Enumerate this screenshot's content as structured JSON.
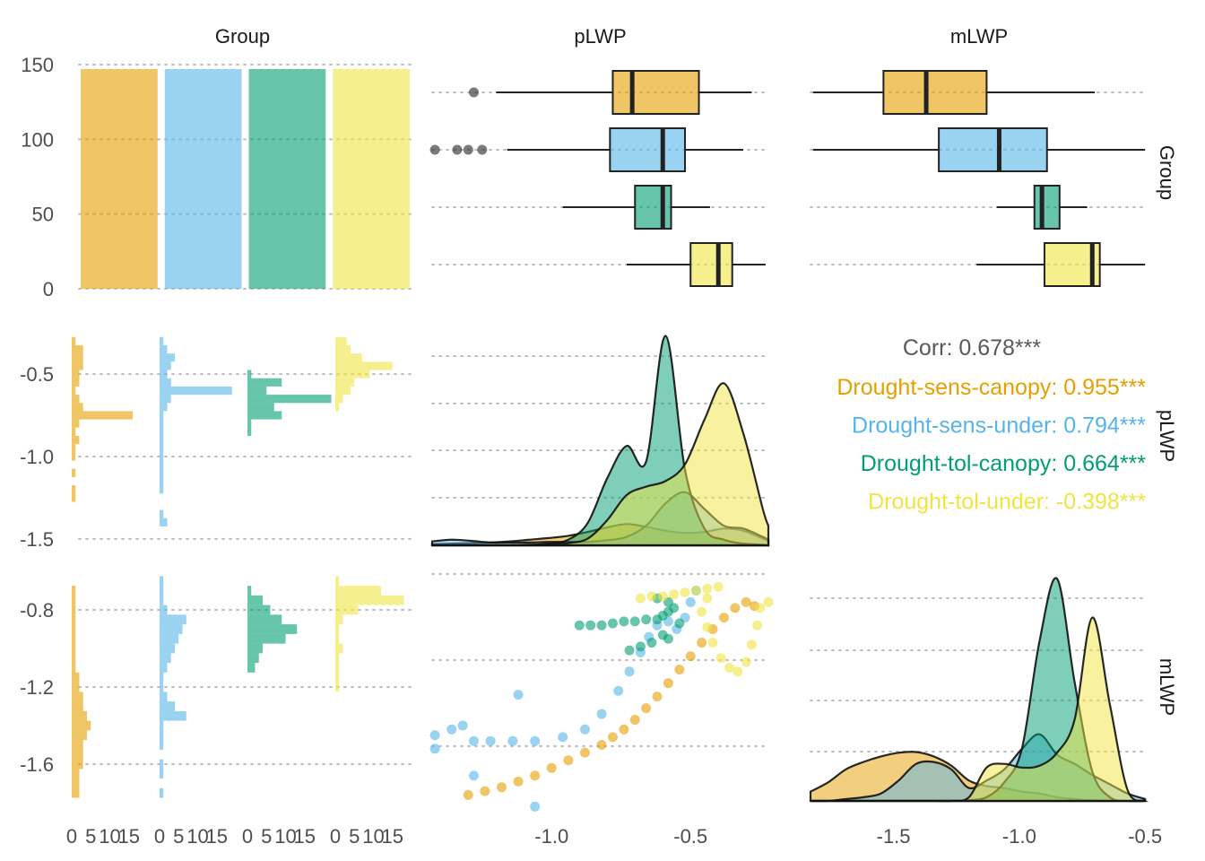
{
  "colors": {
    "group1": "#e69f00",
    "group2": "#56b4e9",
    "group3": "#009e73",
    "group4": "#f0e442",
    "corr_overall": "#595959"
  },
  "chart_data": {
    "type": "scatter",
    "subtype": "pairs matrix (ggpairs)",
    "variables": [
      "Group",
      "pLWP",
      "mLWP"
    ],
    "groups": [
      "Drought-sens-canopy",
      "Drought-sens-under",
      "Drought-tol-canopy",
      "Drought-tol-under"
    ],
    "group_counts": [
      147,
      147,
      147,
      147
    ],
    "group_axis": {
      "ticks": [
        0,
        50,
        100,
        150
      ],
      "ylim": [
        0,
        150
      ]
    },
    "plwp_axis": {
      "ticks": [
        -1.0,
        -0.5
      ],
      "xlim": [
        -1.43,
        -0.22
      ],
      "row_ticks": [
        -0.5,
        -1.0,
        -1.5
      ],
      "ylim": [
        -1.55,
        -0.2
      ]
    },
    "mlwp_axis": {
      "ticks": [
        -1.5,
        -1.0,
        -0.5
      ],
      "xlim": [
        -1.83,
        -0.49
      ],
      "row_ticks": [
        -0.8,
        -1.2,
        -1.6
      ],
      "ylim": [
        -1.8,
        -0.6
      ]
    },
    "histogram_count_ticks": [
      "0",
      "5",
      "10",
      "15"
    ],
    "boxplots": {
      "pLWP": [
        {
          "group": "Drought-sens-canopy",
          "whisker_low": -1.2,
          "q1": -0.78,
          "median": -0.71,
          "q3": -0.47,
          "whisker_high": -0.28,
          "outliers": [
            -1.28
          ]
        },
        {
          "group": "Drought-sens-under",
          "whisker_low": -1.16,
          "q1": -0.79,
          "median": -0.6,
          "q3": -0.52,
          "whisker_high": -0.31,
          "outliers": [
            -1.42,
            -1.34,
            -1.3,
            -1.25
          ]
        },
        {
          "group": "Drought-tol-canopy",
          "whisker_low": -0.96,
          "q1": -0.7,
          "median": -0.6,
          "q3": -0.57,
          "whisker_high": -0.43
        },
        {
          "group": "Drought-tol-under",
          "whisker_low": -0.73,
          "q1": -0.5,
          "median": -0.4,
          "q3": -0.35,
          "whisker_high": -0.23
        }
      ],
      "mLWP": [
        {
          "group": "Drought-sens-canopy",
          "whisker_low": -1.82,
          "q1": -1.54,
          "median": -1.37,
          "q3": -1.13,
          "whisker_high": -0.7
        },
        {
          "group": "Drought-sens-under",
          "whisker_low": -1.82,
          "q1": -1.32,
          "median": -1.08,
          "q3": -0.89,
          "whisker_high": -0.5
        },
        {
          "group": "Drought-tol-canopy",
          "whisker_low": -1.09,
          "q1": -0.94,
          "median": -0.91,
          "q3": -0.84,
          "whisker_high": -0.73
        },
        {
          "group": "Drought-tol-under",
          "whisker_low": -1.17,
          "q1": -0.9,
          "median": -0.71,
          "q3": -0.68,
          "whisker_high": -0.5
        }
      ]
    },
    "density_pLWP": {
      "x": [
        -1.43,
        -1.36,
        -1.29,
        -1.22,
        -1.15,
        -1.08,
        -1.01,
        -0.94,
        -0.87,
        -0.8,
        -0.73,
        -0.66,
        -0.59,
        -0.52,
        -0.45,
        -0.38,
        -0.31,
        -0.24,
        -0.22
      ],
      "series": [
        {
          "name": "Drought-sens-canopy",
          "values": [
            0.02,
            0.03,
            0.04,
            0.05,
            0.07,
            0.1,
            0.13,
            0.17,
            0.24,
            0.32,
            0.38,
            0.33,
            0.26,
            0.22,
            0.24,
            0.3,
            0.26,
            0.12,
            0.08
          ]
        },
        {
          "name": "Drought-sens-under",
          "values": [
            0.07,
            0.1,
            0.08,
            0.05,
            0.05,
            0.05,
            0.06,
            0.06,
            0.06,
            0.09,
            0.15,
            0.35,
            0.75,
            0.95,
            0.65,
            0.35,
            0.3,
            0.15,
            0.1
          ]
        },
        {
          "name": "Drought-tol-canopy",
          "values": [
            0.0,
            0.0,
            0.0,
            0.0,
            0.0,
            0.01,
            0.03,
            0.1,
            0.4,
            1.2,
            1.78,
            1.5,
            3.75,
            1.35,
            0.3,
            0.1,
            0.03,
            0.01,
            0.0
          ]
        },
        {
          "name": "Drought-tol-under",
          "values": [
            0.0,
            0.0,
            0.0,
            0.0,
            0.0,
            0.0,
            0.01,
            0.04,
            0.12,
            0.45,
            0.9,
            1.05,
            1.15,
            1.45,
            2.25,
            2.9,
            2.0,
            0.65,
            0.35
          ]
        }
      ],
      "ylim": [
        0,
        3.95
      ]
    },
    "density_mLWP": {
      "x": [
        -1.83,
        -1.76,
        -1.69,
        -1.62,
        -1.55,
        -1.48,
        -1.41,
        -1.34,
        -1.27,
        -1.2,
        -1.13,
        -1.06,
        -0.99,
        -0.92,
        -0.85,
        -0.78,
        -0.71,
        -0.64,
        -0.57,
        -0.5
      ],
      "series": [
        {
          "name": "Drought-sens-canopy",
          "values": [
            0.25,
            0.5,
            0.85,
            1.05,
            1.2,
            1.3,
            1.32,
            1.2,
            0.95,
            0.55,
            0.4,
            0.35,
            0.25,
            0.2,
            0.1,
            0.05,
            0.02,
            0.0,
            0.0,
            0.0
          ]
        },
        {
          "name": "Drought-sens-under",
          "values": [
            0.0,
            0.0,
            0.05,
            0.1,
            0.2,
            0.55,
            1.0,
            1.05,
            0.85,
            0.35,
            0.55,
            0.85,
            1.4,
            1.8,
            1.25,
            1.0,
            0.7,
            0.45,
            0.2,
            0.05
          ]
        },
        {
          "name": "Drought-tol-canopy",
          "values": [
            0.0,
            0.0,
            0.0,
            0.0,
            0.0,
            0.0,
            0.0,
            0.0,
            0.0,
            0.02,
            0.1,
            0.5,
            1.4,
            4.3,
            6.0,
            3.2,
            0.8,
            0.1,
            0.0,
            0.0
          ]
        },
        {
          "name": "Drought-tol-under",
          "values": [
            0.0,
            0.0,
            0.0,
            0.0,
            0.0,
            0.0,
            0.0,
            0.0,
            0.0,
            0.1,
            0.9,
            1.0,
            0.9,
            0.95,
            1.3,
            2.2,
            4.95,
            2.6,
            0.3,
            0.0
          ]
        }
      ],
      "ylim": [
        0,
        6.2
      ]
    },
    "histogram_pLWP": {
      "bins": [
        -0.3,
        -0.35,
        -0.4,
        -0.45,
        -0.5,
        -0.55,
        -0.6,
        -0.65,
        -0.7,
        -0.75,
        -0.8,
        -0.85,
        -0.9,
        -0.95,
        -1.0,
        -1.05,
        -1.1,
        -1.15,
        -1.2,
        -1.25,
        -1.3,
        -1.35,
        -1.4
      ],
      "series": [
        {
          "name": "Drought-sens-canopy",
          "counts": [
            1,
            3,
            3,
            3,
            2,
            2,
            1,
            2,
            3,
            16,
            2,
            1,
            2,
            1,
            1,
            0,
            1,
            0,
            1,
            1,
            0,
            0,
            0
          ]
        },
        {
          "name": "Drought-sens-under",
          "counts": [
            1,
            2,
            4,
            3,
            2,
            3,
            19,
            3,
            2,
            1,
            1,
            1,
            1,
            1,
            1,
            1,
            1,
            1,
            1,
            0,
            0,
            1,
            2
          ]
        },
        {
          "name": "Drought-tol-canopy",
          "counts": [
            0,
            0,
            0,
            0,
            1,
            9,
            5,
            22,
            7,
            9,
            1,
            1,
            0,
            0,
            0,
            0,
            0,
            0,
            0,
            0,
            0,
            0,
            0
          ]
        },
        {
          "name": "Drought-tol-under",
          "counts": [
            3,
            4,
            7,
            15,
            9,
            5,
            4,
            2,
            1,
            0,
            0,
            0,
            0,
            0,
            0,
            0,
            0,
            0,
            0,
            0,
            0,
            0,
            0
          ]
        }
      ],
      "xlim": [
        0,
        20
      ]
    },
    "histogram_mLWP": {
      "bins": [
        -0.65,
        -0.7,
        -0.75,
        -0.8,
        -0.85,
        -0.9,
        -0.95,
        -1.0,
        -1.05,
        -1.1,
        -1.15,
        -1.2,
        -1.25,
        -1.3,
        -1.35,
        -1.4,
        -1.45,
        -1.5,
        -1.55,
        -1.6,
        -1.65,
        -1.7,
        -1.75
      ],
      "series": [
        {
          "name": "Drought-sens-canopy",
          "counts": [
            0,
            1,
            1,
            1,
            1,
            1,
            1,
            1,
            1,
            1,
            2,
            2,
            3,
            3,
            4,
            5,
            4,
            3,
            3,
            3,
            2,
            2,
            2
          ]
        },
        {
          "name": "Drought-sens-under",
          "counts": [
            1,
            1,
            1,
            2,
            7,
            6,
            5,
            4,
            3,
            2,
            1,
            1,
            2,
            4,
            7,
            1,
            1,
            1,
            0,
            1,
            1,
            0,
            1
          ]
        },
        {
          "name": "Drought-tol-canopy",
          "counts": [
            0,
            1,
            4,
            6,
            9,
            13,
            10,
            4,
            3,
            2,
            0,
            0,
            0,
            0,
            0,
            0,
            0,
            0,
            0,
            0,
            0,
            0,
            0
          ]
        },
        {
          "name": "Drought-tol-under",
          "counts": [
            1,
            12,
            18,
            6,
            2,
            1,
            1,
            2,
            1,
            1,
            1,
            1,
            0,
            0,
            0,
            0,
            0,
            0,
            0,
            0,
            0,
            0,
            0
          ]
        }
      ],
      "xlim": [
        0,
        20
      ]
    },
    "scatter_mLWP_vs_pLWP": {
      "series": [
        {
          "name": "Drought-sens-canopy",
          "points": [
            [
              -1.3,
              -1.76
            ],
            [
              -1.24,
              -1.74
            ],
            [
              -1.18,
              -1.72
            ],
            [
              -1.12,
              -1.69
            ],
            [
              -1.06,
              -1.66
            ],
            [
              -1.0,
              -1.62
            ],
            [
              -0.94,
              -1.58
            ],
            [
              -0.88,
              -1.54
            ],
            [
              -0.82,
              -1.5
            ],
            [
              -0.78,
              -1.46
            ],
            [
              -0.74,
              -1.42
            ],
            [
              -0.7,
              -1.37
            ],
            [
              -0.66,
              -1.31
            ],
            [
              -0.62,
              -1.25
            ],
            [
              -0.58,
              -1.18
            ],
            [
              -0.54,
              -1.11
            ],
            [
              -0.5,
              -1.04
            ],
            [
              -0.46,
              -0.97
            ],
            [
              -0.42,
              -0.9
            ],
            [
              -0.38,
              -0.84
            ],
            [
              -0.34,
              -0.79
            ],
            [
              -0.3,
              -0.76
            ],
            [
              -0.27,
              -0.78
            ]
          ]
        },
        {
          "name": "Drought-sens-under",
          "points": [
            [
              -1.42,
              -1.45
            ],
            [
              -1.42,
              -1.52
            ],
            [
              -1.36,
              -1.42
            ],
            [
              -1.32,
              -1.4
            ],
            [
              -1.28,
              -1.48
            ],
            [
              -1.22,
              -1.48
            ],
            [
              -1.14,
              -1.48
            ],
            [
              -1.06,
              -1.48
            ],
            [
              -0.96,
              -1.46
            ],
            [
              -0.88,
              -1.42
            ],
            [
              -0.82,
              -1.34
            ],
            [
              -0.76,
              -1.22
            ],
            [
              -0.72,
              -1.12
            ],
            [
              -0.68,
              -1.02
            ],
            [
              -0.65,
              -0.94
            ],
            [
              -0.62,
              -0.88
            ],
            [
              -0.58,
              -0.86
            ],
            [
              -0.55,
              -0.9
            ],
            [
              -0.52,
              -0.84
            ],
            [
              -0.5,
              -0.76
            ],
            [
              -0.48,
              -0.7
            ],
            [
              -1.12,
              -1.24
            ],
            [
              -1.06,
              -1.82
            ],
            [
              -1.28,
              -1.66
            ]
          ]
        },
        {
          "name": "Drought-tol-canopy",
          "points": [
            [
              -0.9,
              -0.88
            ],
            [
              -0.86,
              -0.88
            ],
            [
              -0.82,
              -0.88
            ],
            [
              -0.78,
              -0.87
            ],
            [
              -0.74,
              -0.86
            ],
            [
              -0.7,
              -0.86
            ],
            [
              -0.66,
              -0.85
            ],
            [
              -0.62,
              -0.85
            ],
            [
              -0.6,
              -0.83
            ],
            [
              -0.58,
              -0.81
            ],
            [
              -0.56,
              -0.79
            ],
            [
              -0.6,
              -0.93
            ],
            [
              -0.64,
              -0.97
            ],
            [
              -0.68,
              -0.99
            ],
            [
              -0.72,
              -1.01
            ],
            [
              -0.58,
              -0.95
            ],
            [
              -0.54,
              -0.87
            ],
            [
              -0.58,
              -0.76
            ],
            [
              -0.62,
              -0.74
            ]
          ]
        },
        {
          "name": "Drought-tol-under",
          "points": [
            [
              -0.68,
              -0.74
            ],
            [
              -0.64,
              -0.73
            ],
            [
              -0.6,
              -0.73
            ],
            [
              -0.56,
              -0.72
            ],
            [
              -0.52,
              -0.71
            ],
            [
              -0.48,
              -0.7
            ],
            [
              -0.44,
              -0.69
            ],
            [
              -0.4,
              -0.68
            ],
            [
              -0.44,
              -0.74
            ],
            [
              -0.46,
              -0.81
            ],
            [
              -0.44,
              -0.89
            ],
            [
              -0.42,
              -0.97
            ],
            [
              -0.39,
              -1.05
            ],
            [
              -0.36,
              -1.1
            ],
            [
              -0.33,
              -1.12
            ],
            [
              -0.3,
              -1.07
            ],
            [
              -0.28,
              -0.98
            ],
            [
              -0.26,
              -0.88
            ],
            [
              -0.25,
              -0.79
            ],
            [
              -0.22,
              -0.76
            ]
          ]
        }
      ]
    },
    "correlation": {
      "overall": "Corr: 0.678***",
      "by_group": [
        {
          "text": "Drought-sens-canopy: 0.955***"
        },
        {
          "text": "Drought-sens-under: 0.794***"
        },
        {
          "text": "Drought-tol-canopy: 0.664***"
        },
        {
          "text": "Drought-tol-under: -0.398***"
        }
      ]
    }
  }
}
